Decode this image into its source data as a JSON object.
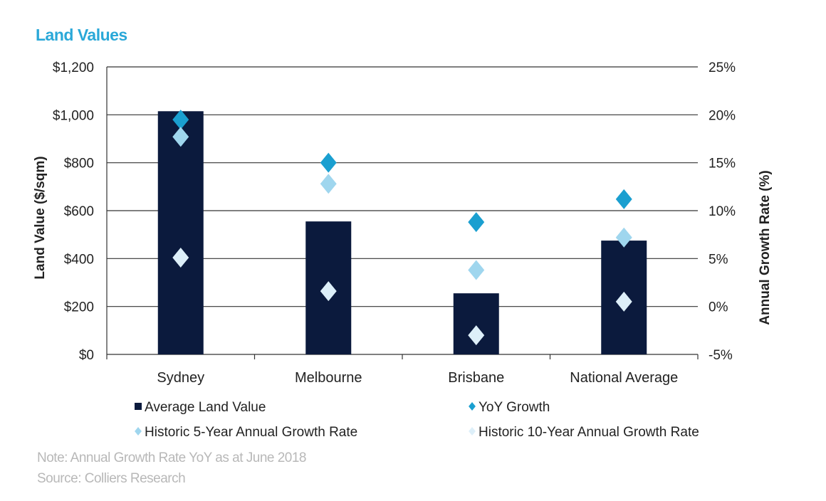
{
  "title": "Land Values",
  "note": "Note: Annual Growth Rate YoY  as at June 2018",
  "source": "Source: Colliers Research",
  "colors": {
    "title": "#2aa8d8",
    "bar": "#0b1a3d",
    "yoy": "#1a9fd0",
    "hist5": "#9fd6ee",
    "hist10": "#ddeff9",
    "grid": "#333333"
  },
  "chart_data": {
    "type": "bar",
    "categories": [
      "Sydney",
      "Melbourne",
      "Brisbane",
      "National Average"
    ],
    "ylabel": "Land Value ($/sqm)",
    "y2label": "Annual Growth Rate (%)",
    "ylim": [
      0,
      1200
    ],
    "y2lim": [
      -5,
      25
    ],
    "yticks": [
      0,
      200,
      400,
      600,
      800,
      1000,
      1200
    ],
    "ytick_labels": [
      "$0",
      "$200",
      "$400",
      "$600",
      "$800",
      "$1,000",
      "$1,200"
    ],
    "y2ticks": [
      -5,
      0,
      5,
      10,
      15,
      20,
      25
    ],
    "y2tick_labels": [
      "-5%",
      "0%",
      "5%",
      "10%",
      "15%",
      "20%",
      "25%"
    ],
    "grid": true,
    "legend_position": "bottom",
    "series": [
      {
        "name": "Average Land Value",
        "kind": "bar",
        "axis": "left",
        "values": [
          1015,
          555,
          255,
          475
        ]
      },
      {
        "name": "YoY Growth",
        "kind": "marker",
        "axis": "right",
        "values": [
          19.5,
          15.0,
          8.8,
          11.2
        ]
      },
      {
        "name": "Historic 5-Year Annual Growth Rate",
        "kind": "marker",
        "axis": "right",
        "values": [
          17.7,
          12.8,
          3.8,
          7.2
        ]
      },
      {
        "name": "Historic 10-Year Annual Growth Rate",
        "kind": "marker",
        "axis": "right",
        "values": [
          5.1,
          1.6,
          -3.0,
          0.5
        ]
      }
    ]
  }
}
